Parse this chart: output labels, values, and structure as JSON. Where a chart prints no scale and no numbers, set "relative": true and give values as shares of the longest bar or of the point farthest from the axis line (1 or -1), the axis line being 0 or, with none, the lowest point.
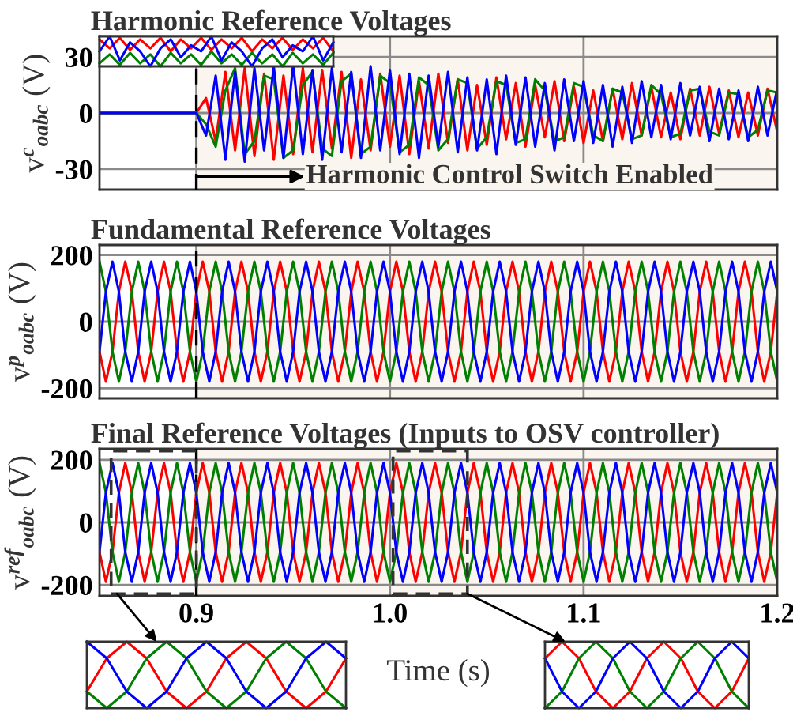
{
  "chart_data": [
    {
      "type": "line",
      "title": "Harmonic Reference Voltages",
      "ylabel": "v$^{c}$$_{oabc}$ (V)",
      "xlim": [
        0.85,
        1.2
      ],
      "ylim": [
        -41,
        41
      ],
      "xticks": [
        {
          "value": 0.9,
          "label": null
        },
        {
          "value": 1.0,
          "label": null
        },
        {
          "value": 1.1,
          "label": null
        },
        {
          "value": 1.2,
          "label": null
        }
      ],
      "yticks": [
        -30,
        0,
        30
      ],
      "grid": true,
      "tick_labels": "y",
      "ref_lines": [
        {
          "axis": "x",
          "value": 0.9,
          "color": "#000000",
          "line_style": "dashed"
        }
      ],
      "bands": [
        {
          "axis": "x",
          "from": 0.9,
          "to": 1.2,
          "color": "#fbf5f0"
        }
      ],
      "annotations": [
        {
          "text": "Harmonic Control Switch Enabled",
          "x": 0.9,
          "y": -34
        }
      ],
      "x": [
        0.85,
        0.9,
        0.905,
        0.91,
        0.915,
        0.92,
        0.925,
        0.93,
        0.935,
        0.94,
        0.945,
        0.95,
        0.955,
        0.96,
        0.965,
        0.97,
        0.975,
        0.98,
        0.985,
        0.99,
        0.995,
        1.0,
        1.005,
        1.01,
        1.015,
        1.02,
        1.025,
        1.03,
        1.035,
        1.04,
        1.045,
        1.05,
        1.055,
        1.06,
        1.065,
        1.07,
        1.075,
        1.08,
        1.085,
        1.09,
        1.095,
        1.1,
        1.105,
        1.11,
        1.115,
        1.12,
        1.125,
        1.13,
        1.135,
        1.14,
        1.145,
        1.15,
        1.155,
        1.16,
        1.165,
        1.17,
        1.175,
        1.18,
        1.185,
        1.19,
        1.195,
        1.2
      ],
      "series": [
        {
          "color": "#ff0000",
          "values": [
            0,
            0,
            8,
            -15,
            22,
            -20,
            24,
            -23,
            21,
            -25,
            20,
            -22,
            24,
            -21,
            23,
            -19,
            22,
            -24,
            18,
            -20,
            21,
            -18,
            20,
            -22,
            17,
            -19,
            21,
            -16,
            18,
            -20,
            15,
            -17,
            19,
            -14,
            16,
            -18,
            15,
            -13,
            17,
            -15,
            14,
            -16,
            12,
            -15,
            13,
            -14,
            16,
            -12,
            14,
            -13,
            11,
            -14,
            13,
            -12,
            14,
            -11,
            12,
            -13,
            11,
            -12,
            13,
            -10
          ]
        },
        {
          "color": "#008000",
          "values": [
            0,
            0,
            -6,
            -18,
            12,
            24,
            -22,
            -15,
            20,
            18,
            -24,
            -20,
            15,
            22,
            -19,
            -23,
            17,
            21,
            -22,
            -18,
            20,
            16,
            -21,
            -17,
            19,
            15,
            -20,
            -14,
            18,
            16,
            -19,
            -13,
            17,
            15,
            -16,
            -14,
            18,
            12,
            -15,
            -13,
            16,
            14,
            -12,
            -15,
            13,
            11,
            -14,
            -12,
            15,
            10,
            -13,
            -11,
            12,
            13,
            -10,
            -12,
            11,
            10,
            -13,
            -9,
            12,
            11
          ]
        },
        {
          "color": "#0000ff",
          "values": [
            0,
            0,
            -12,
            20,
            -25,
            22,
            -26,
            24,
            -20,
            25,
            -24,
            26,
            -22,
            23,
            -25,
            24,
            -21,
            22,
            -24,
            25,
            -20,
            23,
            -22,
            21,
            -24,
            20,
            -18,
            22,
            -21,
            19,
            -20,
            18,
            -22,
            20,
            -17,
            19,
            -18,
            16,
            -20,
            18,
            -15,
            17,
            -16,
            15,
            -18,
            14,
            -16,
            17,
            -13,
            15,
            -14,
            16,
            -12,
            14,
            -15,
            13,
            -14,
            12,
            -15,
            14,
            -12,
            13
          ]
        }
      ]
    },
    {
      "type": "line",
      "relative": true,
      "tick_labels": false,
      "categories": [
        null,
        null,
        null,
        null,
        null,
        null,
        null,
        null,
        null,
        null,
        null,
        null,
        null,
        null,
        null,
        null,
        null,
        null,
        null,
        null,
        null,
        null,
        null,
        null
      ],
      "series": [
        {
          "color": "#ff0000",
          "values": [
            0.9,
            0.6,
            0.95,
            0.55,
            0.9,
            0.6,
            0.95,
            0.5,
            0.9,
            0.6,
            0.95,
            0.55,
            0.9,
            0.6,
            0.95,
            0.5,
            0.9,
            0.6,
            0.95,
            0.55,
            0.9,
            0.6,
            0.95,
            0.5
          ]
        },
        {
          "color": "#008000",
          "values": [
            0.1,
            0.4,
            0.05,
            0.45,
            0.1,
            0.4,
            0.0,
            0.45,
            0.1,
            0.4,
            0.05,
            0.5,
            0.1,
            0.4,
            0.05,
            0.45,
            0.1,
            0.4,
            0.0,
            0.45,
            0.1,
            0.4,
            0.05,
            0.45
          ]
        },
        {
          "color": "#0000ff",
          "values": [
            0.5,
            1.0,
            0.2,
            0.8,
            0.5,
            0.0,
            0.6,
            0.9,
            0.3,
            0.7,
            0.5,
            1.0,
            0.2,
            0.8,
            0.5,
            0.0,
            0.6,
            0.9,
            0.3,
            0.7,
            0.5,
            1.0,
            0.2,
            0.8
          ]
        }
      ]
    },
    {
      "type": "line",
      "title": "Fundamental Reference Voltages",
      "ylabel": "v$^{p}$$_{oabc}$ (V)",
      "xlim": [
        0.85,
        1.2
      ],
      "ylim": [
        -230,
        230
      ],
      "xticks": [
        {
          "value": 0.9,
          "label": null
        },
        {
          "value": 1.0,
          "label": null
        },
        {
          "value": 1.1,
          "label": null
        },
        {
          "value": 1.2,
          "label": null
        }
      ],
      "yticks": [
        -200,
        0,
        200
      ],
      "grid": true,
      "tick_labels": "y",
      "ref_lines": [
        {
          "axis": "x",
          "value": 0.9,
          "color": "#000000",
          "line_style": "dashed"
        }
      ],
      "bands": [
        {
          "axis": "x",
          "from": 0.9,
          "to": 1.2,
          "color": "#fbf5f0"
        }
      ],
      "x": [
        0.85,
        0.8533,
        0.8567,
        0.86,
        0.8633,
        0.8667,
        0.87,
        0.8733,
        0.8767,
        0.88,
        0.8833,
        0.8867,
        0.89,
        0.8933,
        0.8967,
        0.9,
        0.9033,
        0.9067,
        0.91,
        0.9133,
        0.9167,
        0.92,
        0.9233,
        0.9267,
        0.93,
        0.9333,
        0.9367,
        0.94,
        0.9433,
        0.9467,
        0.95,
        0.9533,
        0.9567,
        0.96,
        0.9633,
        0.9667,
        0.97,
        0.9733,
        0.9767,
        0.98,
        0.9833,
        0.9867,
        0.99,
        0.9933,
        0.9967,
        1.0,
        1.0033,
        1.0067,
        1.01,
        1.0133,
        1.0167,
        1.02,
        1.0233,
        1.0267,
        1.03,
        1.0333,
        1.0367,
        1.04,
        1.0433,
        1.0467,
        1.05,
        1.0533,
        1.0567,
        1.06,
        1.0633,
        1.0667,
        1.07,
        1.0733,
        1.0767,
        1.08,
        1.0833,
        1.0867,
        1.09,
        1.0933,
        1.0967,
        1.1,
        1.1033,
        1.1067,
        1.11,
        1.1133,
        1.1167,
        1.12,
        1.1233,
        1.1267,
        1.13,
        1.1333,
        1.1367,
        1.14,
        1.1433,
        1.1467,
        1.15,
        1.1533,
        1.1567,
        1.16,
        1.1633,
        1.1667,
        1.17,
        1.1733,
        1.1767,
        1.18,
        1.1833,
        1.1867,
        1.19,
        1.1933,
        1.1967,
        1.2
      ],
      "series": [
        {
          "color": "#ff0000",
          "values": [
            -90,
            -180,
            -90,
            90,
            180,
            90,
            -90,
            -180,
            -90,
            90,
            180,
            90,
            -90,
            -180,
            -90,
            90,
            180,
            90,
            -90,
            -180,
            -90,
            90,
            180,
            90,
            -90,
            -180,
            -90,
            90,
            180,
            90,
            -90,
            -180,
            -90,
            90,
            180,
            90,
            -90,
            -180,
            -90,
            90,
            180,
            90,
            -90,
            -180,
            -90,
            90,
            180,
            90,
            -90,
            -180,
            -90,
            90,
            180,
            90,
            -90,
            -180,
            -90,
            90,
            180,
            90,
            -90,
            -180,
            -90,
            90,
            180,
            90,
            -90,
            -180,
            -90,
            90,
            180,
            90,
            -90,
            -180,
            -90,
            90,
            180,
            90,
            -90,
            -180,
            -90,
            90,
            180,
            90,
            -90,
            -180,
            -90,
            90,
            180,
            90,
            -90,
            -180,
            -90,
            90,
            180,
            90,
            -90,
            -180,
            -90,
            90,
            180,
            90,
            -90,
            -180,
            -90,
            90
          ]
        },
        {
          "color": "#008000",
          "values": [
            180,
            90,
            -90,
            -180,
            -90,
            90,
            180,
            90,
            -90,
            -180,
            -90,
            90,
            180,
            90,
            -90,
            -180,
            -90,
            90,
            180,
            90,
            -90,
            -180,
            -90,
            90,
            180,
            90,
            -90,
            -180,
            -90,
            90,
            180,
            90,
            -90,
            -180,
            -90,
            90,
            180,
            90,
            -90,
            -180,
            -90,
            90,
            180,
            90,
            -90,
            -180,
            -90,
            90,
            180,
            90,
            -90,
            -180,
            -90,
            90,
            180,
            90,
            -90,
            -180,
            -90,
            90,
            180,
            90,
            -90,
            -180,
            -90,
            90,
            180,
            90,
            -90,
            -180,
            -90,
            90,
            180,
            90,
            -90,
            -180,
            -90,
            90,
            180,
            90,
            -90,
            -180,
            -90,
            90,
            180,
            90,
            -90,
            -180,
            -90,
            90,
            180,
            90,
            -90,
            -180,
            -90,
            90,
            180,
            90,
            -90,
            -180,
            -90,
            90,
            180,
            90,
            -90,
            -180
          ]
        },
        {
          "color": "#0000ff",
          "values": [
            -90,
            90,
            180,
            90,
            -90,
            -180,
            -90,
            90,
            180,
            90,
            -90,
            -180,
            -90,
            90,
            180,
            90,
            -90,
            -180,
            -90,
            90,
            180,
            90,
            -90,
            -180,
            -90,
            90,
            180,
            90,
            -90,
            -180,
            -90,
            90,
            180,
            90,
            -90,
            -180,
            -90,
            90,
            180,
            90,
            -90,
            -180,
            -90,
            90,
            180,
            90,
            -90,
            -180,
            -90,
            90,
            180,
            90,
            -90,
            -180,
            -90,
            90,
            180,
            90,
            -90,
            -180,
            -90,
            90,
            180,
            90,
            -90,
            -180,
            -90,
            90,
            180,
            90,
            -90,
            -180,
            -90,
            90,
            180,
            90,
            -90,
            -180,
            -90,
            90,
            180,
            90,
            -90,
            -180,
            -90,
            90,
            180,
            90,
            -90,
            -180,
            -90,
            90,
            180,
            90,
            -90,
            -180,
            -90,
            90,
            180,
            90,
            -90,
            -180,
            -90,
            90,
            180,
            90
          ]
        }
      ]
    },
    {
      "type": "line",
      "title": "Final Reference Voltages (Inputs to OSV controller)",
      "ylabel": "v$^{ref}$$_{oabc}$ (V)",
      "xlabel": "Time (s)",
      "xlim": [
        0.85,
        1.2
      ],
      "ylim": [
        -235,
        235
      ],
      "xticks": [
        0.9,
        {
          "value": 1.0,
          "label": "1.0"
        },
        1.1,
        1.2
      ],
      "yticks": [
        -200,
        0,
        200
      ],
      "grid": true,
      "ref_lines": [
        {
          "axis": "x",
          "value": 0.9,
          "color": "#000000",
          "line_style": "dashed"
        }
      ],
      "bands": [
        {
          "axis": "x",
          "from": 0.9,
          "to": 1.2,
          "color": "#fbf5f0"
        }
      ],
      "x": [
        0.85,
        0.8533,
        0.8567,
        0.86,
        0.8633,
        0.8667,
        0.87,
        0.8733,
        0.8767,
        0.88,
        0.8833,
        0.8867,
        0.89,
        0.8933,
        0.8967,
        0.9,
        0.9033,
        0.9067,
        0.91,
        0.9133,
        0.9167,
        0.92,
        0.9233,
        0.9267,
        0.93,
        0.9333,
        0.9367,
        0.94,
        0.9433,
        0.9467,
        0.95,
        0.9533,
        0.9567,
        0.96,
        0.9633,
        0.9667,
        0.97,
        0.9733,
        0.9767,
        0.98,
        0.9833,
        0.9867,
        0.99,
        0.9933,
        0.9967,
        1.0,
        1.0033,
        1.0067,
        1.01,
        1.0133,
        1.0167,
        1.02,
        1.0233,
        1.0267,
        1.03,
        1.0333,
        1.0367,
        1.04,
        1.0433,
        1.0467,
        1.05,
        1.0533,
        1.0567,
        1.06,
        1.0633,
        1.0667,
        1.07,
        1.0733,
        1.0767,
        1.08,
        1.0833,
        1.0867,
        1.09,
        1.0933,
        1.0967,
        1.1,
        1.1033,
        1.1067,
        1.11,
        1.1133,
        1.1167,
        1.12,
        1.1233,
        1.1267,
        1.13,
        1.1333,
        1.1367,
        1.14,
        1.1433,
        1.1467,
        1.15,
        1.1533,
        1.1567,
        1.16,
        1.1633,
        1.1667,
        1.17,
        1.1733,
        1.1767,
        1.18,
        1.1833,
        1.1867,
        1.19,
        1.1933,
        1.1967,
        1.2
      ],
      "series": [
        {
          "color": "#ff0000",
          "values": [
            -95,
            -190,
            -95,
            95,
            190,
            95,
            -95,
            -190,
            -95,
            95,
            190,
            95,
            -95,
            -190,
            -95,
            95,
            190,
            95,
            -95,
            -190,
            -95,
            95,
            190,
            95,
            -95,
            -190,
            -95,
            95,
            190,
            95,
            -95,
            -190,
            -95,
            95,
            190,
            95,
            -95,
            -190,
            -95,
            95,
            190,
            95,
            -95,
            -190,
            -95,
            95,
            190,
            95,
            -95,
            -190,
            -95,
            95,
            190,
            95,
            -95,
            -190,
            -95,
            95,
            190,
            95,
            -95,
            -190,
            -95,
            95,
            190,
            95,
            -95,
            -190,
            -95,
            95,
            190,
            95,
            -95,
            -190,
            -95,
            95,
            190,
            95,
            -95,
            -190,
            -95,
            95,
            190,
            95,
            -95,
            -190,
            -95,
            95,
            190,
            95,
            -95,
            -190,
            -95,
            95,
            190,
            95,
            -95,
            -190,
            -95,
            95,
            190,
            95,
            -95,
            -190,
            -95,
            95
          ]
        },
        {
          "color": "#008000",
          "values": [
            190,
            95,
            -95,
            -190,
            -95,
            95,
            190,
            95,
            -95,
            -190,
            -95,
            95,
            190,
            95,
            -95,
            -190,
            -95,
            95,
            190,
            95,
            -95,
            -190,
            -95,
            95,
            190,
            95,
            -95,
            -190,
            -95,
            95,
            190,
            95,
            -95,
            -190,
            -95,
            95,
            190,
            95,
            -95,
            -190,
            -95,
            95,
            190,
            95,
            -95,
            -190,
            -95,
            95,
            190,
            95,
            -95,
            -190,
            -95,
            95,
            190,
            95,
            -95,
            -190,
            -95,
            95,
            190,
            95,
            -95,
            -190,
            -95,
            95,
            190,
            95,
            -95,
            -190,
            -95,
            95,
            190,
            95,
            -95,
            -190,
            -95,
            95,
            190,
            95,
            -95,
            -190,
            -95,
            95,
            190,
            95,
            -95,
            -190,
            -95,
            95,
            190,
            95,
            -95,
            -190,
            -95,
            95,
            190,
            95,
            -95,
            -190,
            -95,
            95,
            190,
            95,
            -95,
            -190
          ]
        },
        {
          "color": "#0000ff",
          "values": [
            -95,
            95,
            190,
            95,
            -95,
            -190,
            -95,
            95,
            190,
            95,
            -95,
            -190,
            -95,
            95,
            190,
            95,
            -95,
            -190,
            -95,
            95,
            190,
            95,
            -95,
            -190,
            -95,
            95,
            190,
            95,
            -95,
            -190,
            -95,
            95,
            190,
            95,
            -95,
            -190,
            -95,
            95,
            190,
            95,
            -95,
            -190,
            -95,
            95,
            190,
            95,
            -95,
            -190,
            -95,
            95,
            190,
            95,
            -95,
            -190,
            -95,
            95,
            190,
            95,
            -95,
            -190,
            -95,
            95,
            190,
            95,
            -95,
            -190,
            -95,
            95,
            190,
            95,
            -95,
            -190,
            -95,
            95,
            190,
            95,
            -95,
            -190,
            -95,
            95,
            190,
            95,
            -95,
            -190,
            -95,
            95,
            190,
            95,
            -95,
            -190,
            -95,
            95,
            190,
            95,
            -95,
            -190,
            -95,
            95,
            190,
            95,
            -95,
            -190,
            -95,
            95,
            190,
            95
          ]
        }
      ]
    },
    {
      "type": "line",
      "relative": true,
      "tick_labels": false,
      "categories": [
        null,
        null,
        null,
        null,
        null,
        null,
        null,
        null,
        null,
        null,
        null,
        null,
        null,
        null
      ],
      "series": [
        {
          "color": "#ff0000",
          "values": [
            0.25,
            0.75,
            1,
            0.75,
            0.25,
            0,
            0.25,
            0.75,
            1,
            0.75,
            0.25,
            0,
            0.25,
            0.75
          ]
        },
        {
          "color": "#008000",
          "values": [
            0.25,
            0,
            0.25,
            0.75,
            1,
            0.75,
            0.25,
            0,
            0.25,
            0.75,
            1,
            0.75,
            0.25,
            0
          ]
        },
        {
          "color": "#0000ff",
          "values": [
            1,
            0.75,
            0.25,
            0,
            0.25,
            0.75,
            1,
            0.75,
            0.25,
            0,
            0.25,
            0.75,
            1,
            0.75
          ]
        }
      ]
    },
    {
      "type": "line",
      "relative": true,
      "tick_labels": false,
      "categories": [
        null,
        null,
        null,
        null,
        null,
        null,
        null,
        null,
        null,
        null,
        null,
        null,
        null
      ],
      "series": [
        {
          "color": "#ff0000",
          "values": [
            0.75,
            1,
            0.75,
            0.25,
            0,
            0.25,
            0.75,
            1,
            0.75,
            0.25,
            0,
            0.25,
            0.75
          ]
        },
        {
          "color": "#008000",
          "values": [
            0,
            0.25,
            0.75,
            1,
            0.75,
            0.25,
            0,
            0.25,
            0.75,
            1,
            0.75,
            0.25,
            0
          ]
        },
        {
          "color": "#0000ff",
          "values": [
            0.75,
            0.25,
            0,
            0.25,
            0.75,
            1,
            0.75,
            0.25,
            0,
            0.25,
            0.75,
            1,
            0.75
          ]
        }
      ]
    }
  ]
}
